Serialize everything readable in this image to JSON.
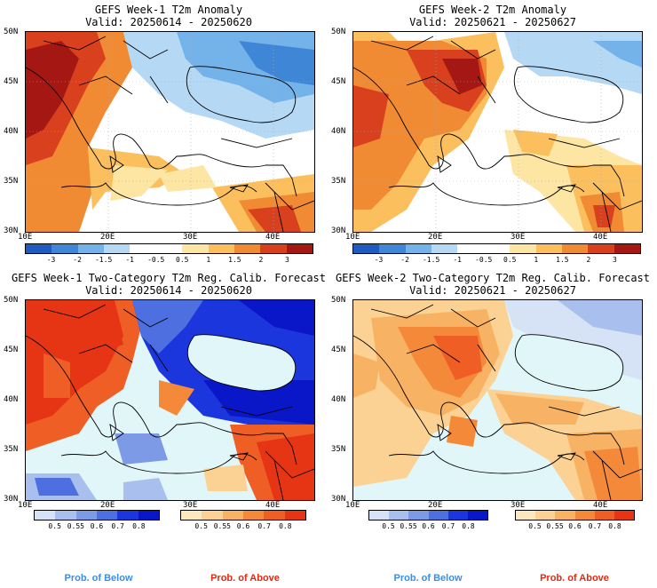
{
  "panels": [
    {
      "title": "GEFS Week-1 T2m Anomaly",
      "valid": "Valid: 20250614 - 20250620"
    },
    {
      "title": "GEFS Week-2 T2m Anomaly",
      "valid": "Valid: 20250621 - 20250627"
    },
    {
      "title": "GEFS Week-1 Two-Category T2m Reg. Calib. Forecast",
      "valid": "Valid: 20250614 - 20250620"
    },
    {
      "title": "GEFS Week-2 Two-Category T2m Reg. Calib. Forecast",
      "valid": "Valid: 20250621 - 20250627"
    }
  ],
  "lat_ticks": [
    "50N",
    "45N",
    "40N",
    "35N",
    "30N"
  ],
  "lon_ticks": [
    "10E",
    "20E",
    "30E",
    "40E"
  ],
  "anomaly_colorbar": {
    "labels": [
      "-3",
      "-2",
      "-1.5",
      "-1",
      "-0.5",
      "0.5",
      "1",
      "1.5",
      "2",
      "3"
    ],
    "colors": [
      "#1f5bbf",
      "#3f86d6",
      "#74b2ea",
      "#b5d8f5",
      "#ffffff",
      "#ffffff",
      "#fde6a3",
      "#fbbf5e",
      "#f08a33",
      "#d9411e",
      "#a51712"
    ]
  },
  "prob_colorbar_below": {
    "labels": [
      "0.5",
      "0.55",
      "0.6",
      "0.7",
      "0.8"
    ],
    "colors": [
      "#d6e2f5",
      "#a9c0ee",
      "#7c9ae6",
      "#4d6fe0",
      "#1c36dd",
      "#0a17c8"
    ]
  },
  "prob_colorbar_above": {
    "labels": [
      "0.5",
      "0.55",
      "0.6",
      "0.7",
      "0.8"
    ],
    "colors": [
      "#fbe8bf",
      "#fbd293",
      "#f8b264",
      "#f4893a",
      "#ef5e25",
      "#e53514"
    ]
  },
  "prob_labels": {
    "below": "Prob. of Below",
    "above": "Prob. of Above"
  },
  "colors": {
    "below_label": "#3a8ee6",
    "above_label": "#e02a10",
    "sea": "#e1f6f8"
  }
}
